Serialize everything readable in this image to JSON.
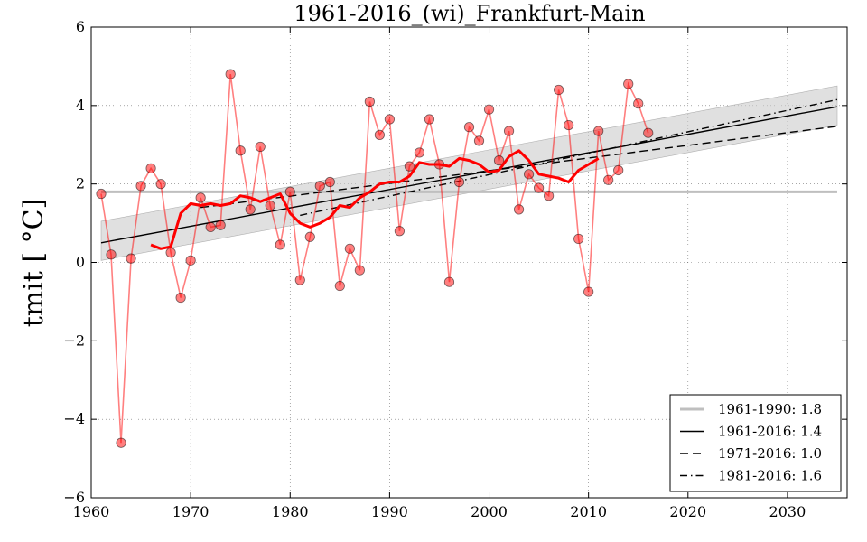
{
  "chart_data": {
    "type": "line",
    "title": "1961-2016_(wi)_Frankfurt-Main",
    "xlabel": "",
    "ylabel": "tmit [ °C]",
    "xlim": [
      1960,
      2036
    ],
    "ylim": [
      -6,
      6
    ],
    "xticks": [
      1960,
      1970,
      1980,
      1990,
      2000,
      2010,
      2020,
      2030
    ],
    "yticks": [
      -6,
      -4,
      -2,
      0,
      2,
      4,
      6
    ],
    "ytick_labels": [
      "−6",
      "−4",
      "−2",
      "0",
      "2",
      "4",
      "6"
    ],
    "grid": true,
    "legend_position": "bottom-right",
    "colors": {
      "observations": "#ff0000",
      "smooth": "#ff0000",
      "reference": "#bfbfbf",
      "trend": "#000000",
      "band": "#cccccc"
    },
    "observations": {
      "name": "annual",
      "x": [
        1961,
        1962,
        1963,
        1964,
        1965,
        1966,
        1967,
        1968,
        1969,
        1970,
        1971,
        1972,
        1973,
        1974,
        1975,
        1976,
        1977,
        1978,
        1979,
        1980,
        1981,
        1982,
        1983,
        1984,
        1985,
        1986,
        1987,
        1988,
        1989,
        1990,
        1991,
        1992,
        1993,
        1994,
        1995,
        1996,
        1997,
        1998,
        1999,
        2000,
        2001,
        2002,
        2003,
        2004,
        2005,
        2006,
        2007,
        2008,
        2009,
        2010,
        2011,
        2012,
        2013,
        2014,
        2015,
        2016
      ],
      "y": [
        1.75,
        0.2,
        -4.6,
        0.1,
        1.95,
        2.4,
        2.0,
        0.25,
        -0.9,
        0.05,
        1.65,
        0.9,
        0.95,
        4.8,
        2.85,
        1.35,
        2.95,
        1.45,
        0.45,
        1.8,
        -0.45,
        0.65,
        1.95,
        2.05,
        -0.6,
        0.35,
        -0.2,
        4.1,
        3.25,
        3.65,
        0.8,
        2.45,
        2.8,
        3.65,
        2.5,
        -0.5,
        2.05,
        3.45,
        3.1,
        3.9,
        2.6,
        3.35,
        1.35,
        2.25,
        1.9,
        1.7,
        4.4,
        3.5,
        0.6,
        -0.75,
        3.35,
        2.1,
        2.35,
        4.55,
        4.05,
        3.3
      ]
    },
    "smooth": {
      "name": "moving average",
      "x": [
        1966,
        1967,
        1968,
        1969,
        1970,
        1971,
        1972,
        1973,
        1974,
        1975,
        1976,
        1977,
        1978,
        1979,
        1980,
        1981,
        1982,
        1983,
        1984,
        1985,
        1986,
        1987,
        1988,
        1989,
        1990,
        1991,
        1992,
        1993,
        1994,
        1995,
        1996,
        1997,
        1998,
        1999,
        2000,
        2001,
        2002,
        2003,
        2004,
        2005,
        2006,
        2007,
        2008,
        2009,
        2010,
        2011
      ],
      "y": [
        0.45,
        0.35,
        0.4,
        1.25,
        1.5,
        1.45,
        1.5,
        1.45,
        1.5,
        1.7,
        1.65,
        1.55,
        1.65,
        1.75,
        1.25,
        1.0,
        0.9,
        1.0,
        1.15,
        1.45,
        1.4,
        1.65,
        1.8,
        2.0,
        2.05,
        2.05,
        2.2,
        2.55,
        2.5,
        2.5,
        2.45,
        2.65,
        2.6,
        2.5,
        2.3,
        2.35,
        2.7,
        2.85,
        2.6,
        2.25,
        2.2,
        2.15,
        2.05,
        2.35,
        2.5,
        2.65
      ]
    },
    "band": {
      "x": [
        1961,
        2035
      ],
      "upper": [
        1.05,
        4.5
      ],
      "lower": [
        0.05,
        3.5
      ]
    },
    "reference_line": {
      "label": "1961-1990: 1.8",
      "y": 1.8,
      "x": [
        1961,
        2035
      ]
    },
    "trend_lines": [
      {
        "label": "1961-2016: 1.4",
        "style": "solid",
        "x": [
          1961,
          2035
        ],
        "y": [
          0.5,
          3.97
        ]
      },
      {
        "label": "1971-2016: 1.0",
        "style": "dashed",
        "x": [
          1971,
          2035
        ],
        "y": [
          1.4,
          3.47
        ]
      },
      {
        "label": "1981-2016: 1.6",
        "style": "dashdot",
        "x": [
          1981,
          2035
        ],
        "y": [
          1.2,
          4.15
        ]
      }
    ]
  }
}
